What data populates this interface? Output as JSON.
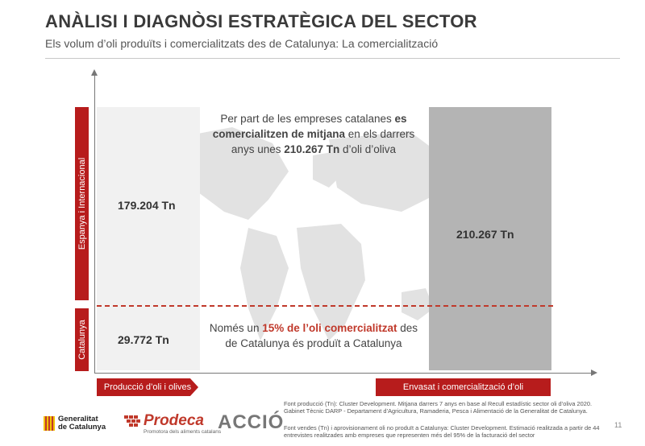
{
  "header": {
    "title": "ANÀLISI I DIAGNÒSI ESTRATÈGICA DEL SECTOR",
    "subtitle": "Els volum d’oli produïts i comercialitzats des de Catalunya: La comercialització"
  },
  "axes": {
    "y_top_label": "Espanya i Internacional",
    "y_bottom_label": "Catalunya",
    "x_left_label": "Producció d’oli i olives",
    "x_right_label": "Envasat i comercialització d’oli"
  },
  "values": {
    "production_spain_international": "179.204 Tn",
    "production_catalonia": "29.772 Tn",
    "commercialization_total": "210.267 Tn"
  },
  "callout_top": {
    "p1": "Per part de les empreses catalanes ",
    "p2": "es comercialitzen de mitjana",
    "p3": " en els darrers anys unes ",
    "p4": "210.267 Tn",
    "p5": " d’oli d’oliva"
  },
  "callout_bottom": {
    "p1": "Només un ",
    "p2": "15% de l’oli comercialitzat",
    "p3": " des de Catalunya és produït a Catalunya"
  },
  "footnotes": {
    "production_source": "Font producció (Tn): Cluster Development. Mitjana darrers 7 anys en base al Recull estadístic sector oli d’oliva 2020. Gabinet Tècnic DARP - Departament d’Agricultura, Ramaderia, Pesca i Alimentació de la Generalitat de Catalunya.",
    "sales_source": "Font vendes (Tn) i aprovisionament oli no produït a Catalunya: Cluster Development. Estimació realitzada a partir de 44 entrevistes realitzades amb empreses que representen més del 95% de la facturació del sector"
  },
  "logos": {
    "generalitat_line1": "Generalitat",
    "generalitat_line2": "de Catalunya",
    "prodeca_name": "Prodeca",
    "prodeca_tagline": "Promotora dels aliments catalans",
    "accio": "ACCIÓ"
  },
  "page_number": "11",
  "colors": {
    "accent_red": "#b71c1c",
    "divider_red": "#c0392b"
  }
}
